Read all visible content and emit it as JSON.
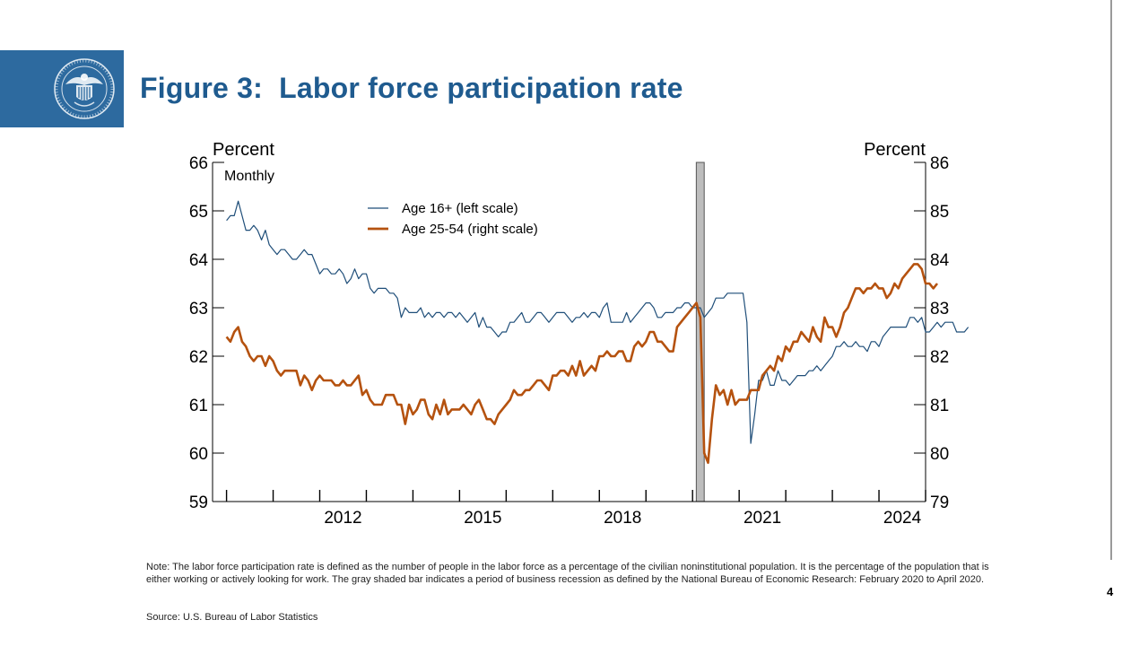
{
  "slide": {
    "title": "Figure 3:  Labor force participation rate",
    "note": "Note: The labor force participation rate is defined as the number of people in the labor force as a percentage of the civilian noninstitutional population. It is the percentage of the population that is either working or actively looking for work. The gray shaded bar indicates a period of business recession as defined by the National Bureau of Economic Research: February 2020 to April 2020.",
    "source": "Source: U.S. Bureau of Labor Statistics",
    "page_number": "4",
    "logo_icon": "federal-reserve-seal-icon",
    "colors": {
      "title": "#1f5b8f",
      "logo_bg": "#2d6a9f",
      "series_16": "#1f4e79",
      "series_25_54": "#b5520f",
      "recession": "#bdbdbd"
    }
  },
  "chart_data": {
    "type": "line",
    "title": "",
    "frequency_label": "Monthly",
    "ylabel_left": "Percent",
    "ylabel_right": "Percent",
    "ylim_left": [
      59,
      66
    ],
    "ylim_right": [
      79,
      86
    ],
    "yticks_left": [
      "59",
      "60",
      "61",
      "62",
      "63",
      "64",
      "65",
      "66"
    ],
    "yticks_right": [
      "79",
      "80",
      "81",
      "82",
      "83",
      "84",
      "85",
      "86"
    ],
    "xlim": [
      2009.7,
      2025.0
    ],
    "xtick_labels": [
      "2012",
      "2015",
      "2018",
      "2021",
      "2024"
    ],
    "xtick_label_positions": [
      2012.5,
      2015.5,
      2018.5,
      2021.5,
      2024.5
    ],
    "xtick_marks": [
      2010,
      2011,
      2012,
      2013,
      2014,
      2015,
      2016,
      2017,
      2018,
      2019,
      2020,
      2021,
      2022,
      2023,
      2024,
      2025
    ],
    "legend_position": "top-center",
    "recession": {
      "start": 2020.08,
      "end": 2020.25,
      "label": "February 2020 to April 2020"
    },
    "series": [
      {
        "name": "Age 16+ (left scale)",
        "axis": "left",
        "color": "#1f4e79",
        "x_start": 2010.0,
        "x_step": 0.0833333,
        "values": [
          64.8,
          64.9,
          64.9,
          65.2,
          64.9,
          64.6,
          64.6,
          64.7,
          64.6,
          64.4,
          64.6,
          64.3,
          64.2,
          64.1,
          64.2,
          64.2,
          64.1,
          64.0,
          64.0,
          64.1,
          64.2,
          64.1,
          64.1,
          63.9,
          63.7,
          63.8,
          63.8,
          63.7,
          63.7,
          63.8,
          63.7,
          63.5,
          63.6,
          63.8,
          63.6,
          63.7,
          63.7,
          63.4,
          63.3,
          63.4,
          63.4,
          63.4,
          63.3,
          63.3,
          63.2,
          62.8,
          63.0,
          62.9,
          62.9,
          62.9,
          63.0,
          62.8,
          62.9,
          62.8,
          62.9,
          62.9,
          62.8,
          62.9,
          62.9,
          62.8,
          62.9,
          62.8,
          62.7,
          62.8,
          62.9,
          62.6,
          62.8,
          62.6,
          62.6,
          62.5,
          62.4,
          62.5,
          62.5,
          62.7,
          62.7,
          62.8,
          62.9,
          62.7,
          62.7,
          62.8,
          62.9,
          62.9,
          62.8,
          62.7,
          62.8,
          62.9,
          62.9,
          62.9,
          62.8,
          62.7,
          62.8,
          62.8,
          62.9,
          62.8,
          62.9,
          62.9,
          62.8,
          63.0,
          63.1,
          62.7,
          62.7,
          62.7,
          62.7,
          62.9,
          62.7,
          62.8,
          62.9,
          63.0,
          63.1,
          63.1,
          63.0,
          62.8,
          62.8,
          62.9,
          62.9,
          62.9,
          63.0,
          63.0,
          63.1,
          63.1,
          63.0,
          63.0,
          63.0,
          62.8,
          62.9,
          63.0,
          63.2,
          63.2,
          63.2,
          63.3,
          63.3,
          63.3,
          63.3,
          63.3,
          62.7,
          60.2,
          60.8,
          61.5,
          61.5,
          61.7,
          61.4,
          61.4,
          61.7,
          61.5,
          61.5,
          61.4,
          61.5,
          61.6,
          61.6,
          61.6,
          61.7,
          61.7,
          61.8,
          61.7,
          61.8,
          61.9,
          62.0,
          62.2,
          62.2,
          62.3,
          62.2,
          62.2,
          62.3,
          62.2,
          62.2,
          62.1,
          62.3,
          62.3,
          62.2,
          62.4,
          62.5,
          62.6,
          62.6,
          62.6,
          62.6,
          62.6,
          62.8,
          62.8,
          62.7,
          62.8,
          62.5,
          62.5,
          62.6,
          62.7,
          62.6,
          62.7,
          62.7,
          62.7,
          62.5,
          62.5,
          62.5,
          62.6
        ]
      },
      {
        "name": "Age 25-54 (right scale)",
        "axis": "right",
        "color": "#b5520f",
        "x_start": 2010.0,
        "x_step": 0.0833333,
        "values": [
          82.4,
          82.3,
          82.5,
          82.6,
          82.3,
          82.2,
          82.0,
          81.9,
          82.0,
          82.0,
          81.8,
          82.0,
          81.9,
          81.7,
          81.6,
          81.7,
          81.7,
          81.7,
          81.7,
          81.4,
          81.6,
          81.5,
          81.3,
          81.5,
          81.6,
          81.5,
          81.5,
          81.5,
          81.4,
          81.4,
          81.5,
          81.4,
          81.4,
          81.5,
          81.6,
          81.2,
          81.3,
          81.1,
          81.0,
          81.0,
          81.0,
          81.2,
          81.2,
          81.2,
          81.0,
          81.0,
          80.6,
          81.0,
          80.8,
          80.9,
          81.1,
          81.1,
          80.8,
          80.7,
          81.0,
          80.8,
          81.1,
          80.8,
          80.9,
          80.9,
          80.9,
          81.0,
          80.9,
          80.8,
          81.0,
          81.1,
          80.9,
          80.7,
          80.7,
          80.6,
          80.8,
          80.9,
          81.0,
          81.1,
          81.3,
          81.2,
          81.2,
          81.3,
          81.3,
          81.4,
          81.5,
          81.5,
          81.4,
          81.3,
          81.6,
          81.6,
          81.7,
          81.7,
          81.6,
          81.8,
          81.6,
          81.9,
          81.6,
          81.7,
          81.8,
          81.7,
          82.0,
          82.0,
          82.1,
          82.0,
          82.0,
          82.1,
          82.1,
          81.9,
          81.9,
          82.2,
          82.3,
          82.2,
          82.3,
          82.5,
          82.5,
          82.3,
          82.3,
          82.2,
          82.1,
          82.1,
          82.6,
          82.7,
          82.8,
          82.9,
          83.0,
          83.1,
          82.8,
          80.0,
          79.8,
          80.7,
          81.4,
          81.2,
          81.3,
          81.0,
          81.3,
          81.0,
          81.1,
          81.1,
          81.1,
          81.3,
          81.3,
          81.3,
          81.6,
          81.7,
          81.8,
          81.7,
          82.0,
          81.9,
          82.2,
          82.1,
          82.3,
          82.3,
          82.5,
          82.4,
          82.3,
          82.6,
          82.4,
          82.3,
          82.8,
          82.6,
          82.6,
          82.4,
          82.6,
          82.9,
          83.0,
          83.2,
          83.4,
          83.4,
          83.3,
          83.4,
          83.4,
          83.5,
          83.4,
          83.4,
          83.2,
          83.3,
          83.5,
          83.4,
          83.6,
          83.7,
          83.8,
          83.9,
          83.9,
          83.8,
          83.5,
          83.5,
          83.4,
          83.5
        ]
      }
    ]
  }
}
